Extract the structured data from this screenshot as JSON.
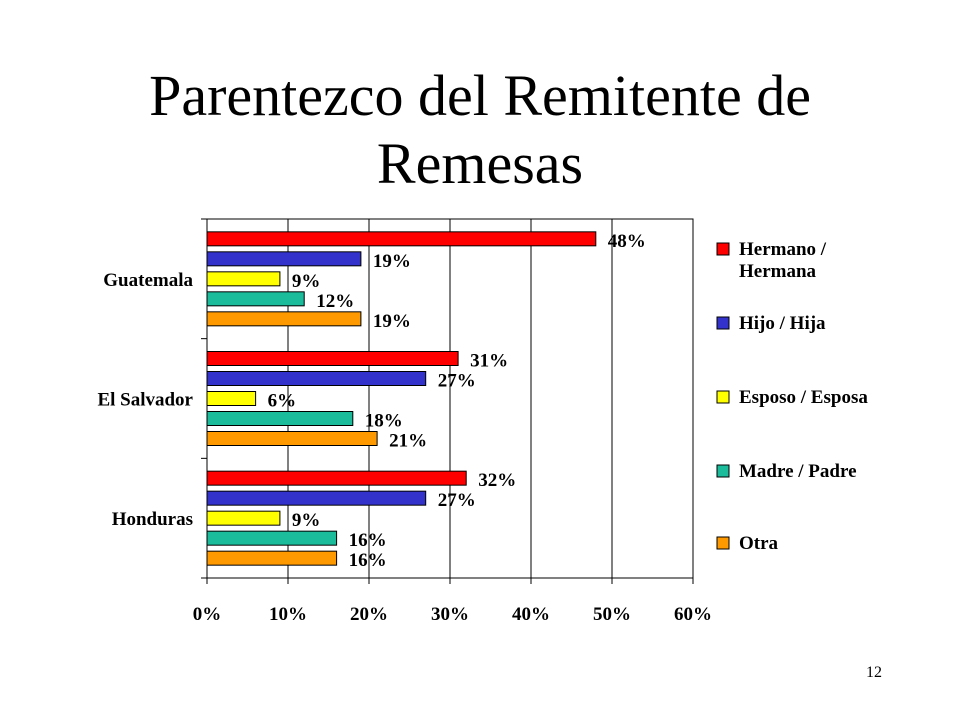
{
  "slide": {
    "title_line1": "Parentezco del Remitente de",
    "title_line2": "Remesas",
    "page_number": "12"
  },
  "chart_data": {
    "type": "bar",
    "orientation": "horizontal",
    "categories": [
      "Guatemala",
      "El Salvador",
      "Honduras"
    ],
    "series": [
      {
        "name": "Hermano / Hermana",
        "color": "#ff0000",
        "values": [
          48,
          31,
          32
        ],
        "labels": [
          "48%",
          "31%",
          "32%"
        ]
      },
      {
        "name": "Hijo / Hija",
        "color": "#3333cc",
        "values": [
          19,
          27,
          27
        ],
        "labels": [
          "19%",
          "27%",
          "27%"
        ]
      },
      {
        "name": "Esposo / Esposa",
        "color": "#ffff00",
        "values": [
          9,
          6,
          9
        ],
        "labels": [
          "9%",
          "6%",
          "9%"
        ]
      },
      {
        "name": "Madre / Padre",
        "color": "#1abc9c",
        "values": [
          12,
          18,
          16
        ],
        "labels": [
          "12%",
          "18%",
          "16%"
        ]
      },
      {
        "name": "Otra",
        "color": "#ff9900",
        "values": [
          19,
          21,
          16
        ],
        "labels": [
          "19%",
          "21%",
          "16%"
        ]
      }
    ],
    "x_ticks": [
      "0%",
      "10%",
      "20%",
      "30%",
      "40%",
      "50%",
      "60%"
    ],
    "xlim": [
      0,
      60
    ],
    "grid": "vertical",
    "legend_position": "right",
    "legend_labels": [
      [
        "Hermano /",
        "Hermana"
      ],
      [
        "Hijo / Hija"
      ],
      [
        "Esposo / Esposa"
      ],
      [
        "Madre / Padre"
      ],
      [
        "Otra"
      ]
    ]
  }
}
